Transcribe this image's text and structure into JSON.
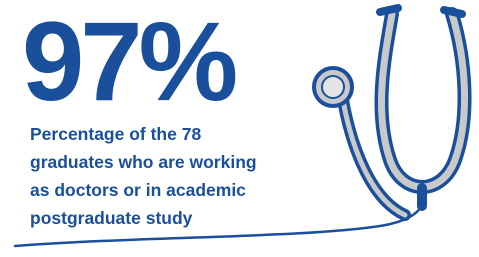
{
  "headline": "97%",
  "caption": [
    "Percentage of the 78",
    "graduates who are working",
    "as doctors or in academic",
    "postgraduate study"
  ]
}
